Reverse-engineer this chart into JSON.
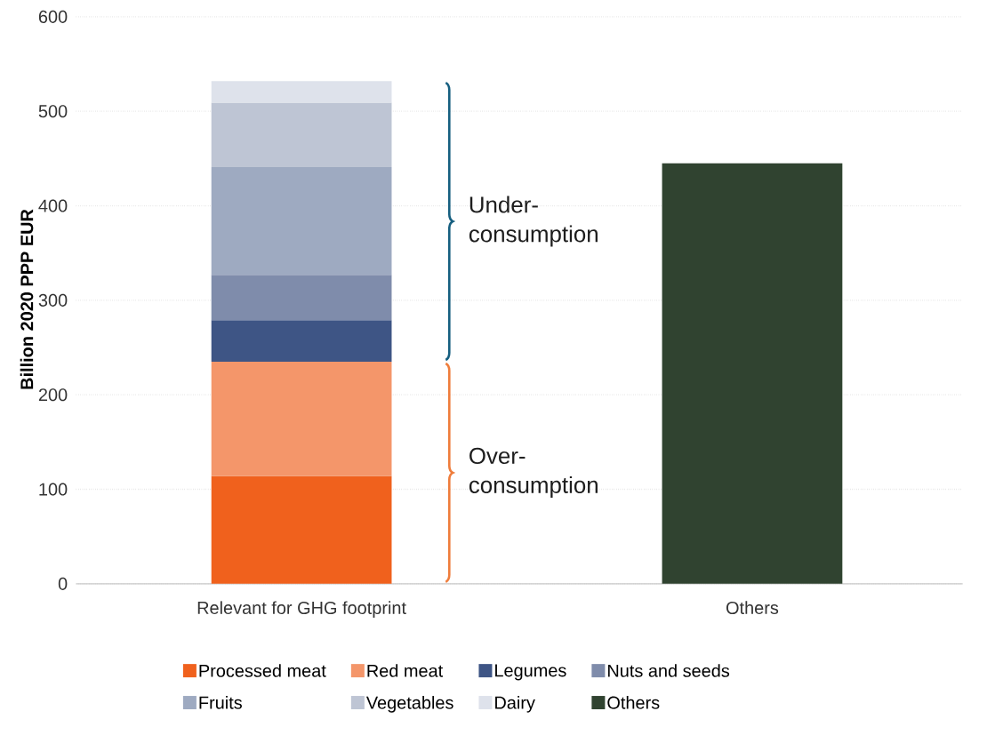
{
  "chart_data": {
    "type": "bar",
    "stacked": true,
    "ylabel": "Billion 2020 PPP EUR",
    "categories": [
      "Relevant for GHG footprint",
      "Others"
    ],
    "series": [
      {
        "name": "Processed meat",
        "color": "#f0611d",
        "values": [
          114,
          null
        ]
      },
      {
        "name": "Red meat",
        "color": "#f4966a",
        "values": [
          121,
          null
        ]
      },
      {
        "name": "Legumes",
        "color": "#3e5585",
        "values": [
          44,
          null
        ]
      },
      {
        "name": "Nuts and seeds",
        "color": "#7f8cab",
        "values": [
          48,
          null
        ]
      },
      {
        "name": "Fruits",
        "color": "#9eaac1",
        "values": [
          114,
          null
        ]
      },
      {
        "name": "Vegetables",
        "color": "#bec5d4",
        "values": [
          68,
          null
        ]
      },
      {
        "name": "Dairy",
        "color": "#dee2eb",
        "values": [
          23,
          null
        ]
      },
      {
        "name": "Others",
        "color": "#304330",
        "values": [
          null,
          445
        ]
      }
    ],
    "ylim": [
      0,
      600
    ],
    "yticks": [
      0,
      100,
      200,
      300,
      400,
      500,
      600
    ],
    "grid": "y",
    "legend": "bottom",
    "annotations": [
      "Under-consumption",
      "Over-consumption"
    ]
  }
}
